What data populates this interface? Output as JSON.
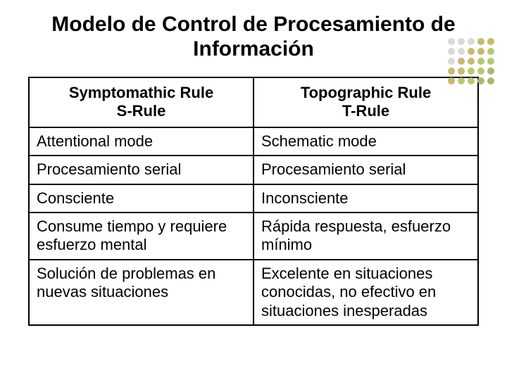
{
  "title": "Modelo de Control de Procesamiento de Información",
  "table": {
    "headers": [
      {
        "main": "Symptomathic Rule",
        "sub": "S-Rule"
      },
      {
        "main": "Topographic Rule",
        "sub": "T-Rule"
      }
    ],
    "rows": [
      [
        "Attentional mode",
        "Schematic mode"
      ],
      [
        "Procesamiento serial",
        "Procesamiento serial"
      ],
      [
        "Consciente",
        "Inconsciente"
      ],
      [
        "Consume tiempo y requiere esfuerzo mental",
        "Rápida respuesta, esfuerzo mínimo"
      ],
      [
        "Solución de problemas en nuevas situaciones",
        "Excelente en situaciones conocidas, no efectivo en situaciones inesperadas"
      ]
    ]
  },
  "dots": {
    "colors": [
      "#d9d9d9",
      "#d9d9d9",
      "#d9d9d9",
      "#c7b96e",
      "#c7b96e",
      "#d9d9d9",
      "#d9d9d9",
      "#c7b96e",
      "#c7b96e",
      "#b7c96e",
      "#d9d9d9",
      "#c7b96e",
      "#c7b96e",
      "#b7c96e",
      "#b7c96e",
      "#c7b96e",
      "#c7b96e",
      "#b7c96e",
      "#b7c96e",
      "#a7b96e",
      "#c7b96e",
      "#b7c96e",
      "#b7c96e",
      "#a7b96e",
      "#a7b96e"
    ]
  },
  "colors": {
    "background": "#ffffff",
    "text": "#000000",
    "border": "#000000"
  }
}
